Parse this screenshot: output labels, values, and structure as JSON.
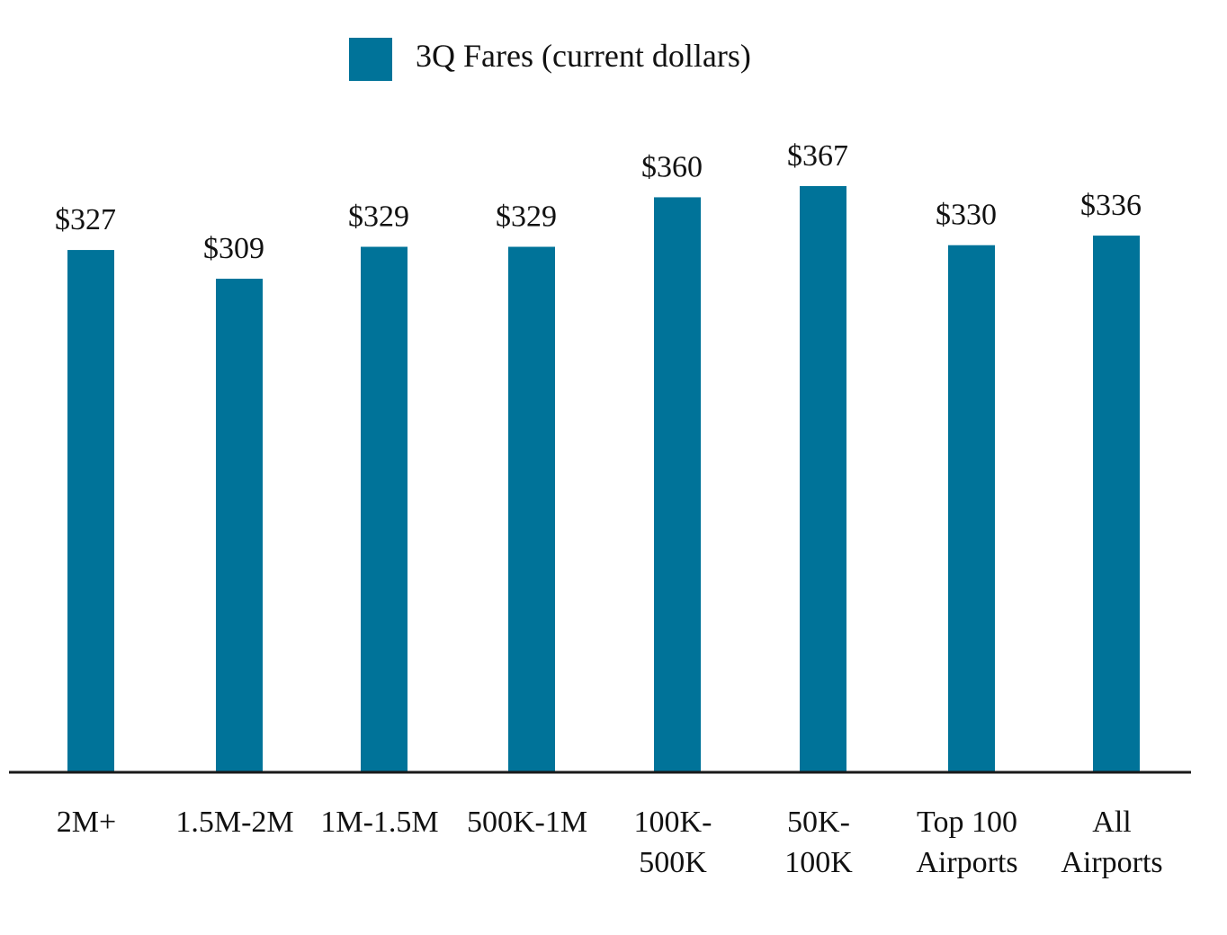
{
  "chart_data": {
    "type": "bar",
    "title": "",
    "xlabel": "",
    "ylabel": "",
    "legend": {
      "position": "top",
      "entries": [
        "3Q Fares (current dollars)"
      ]
    },
    "grid": false,
    "ylim": [
      0,
      410
    ],
    "categories": [
      [
        "2M+"
      ],
      [
        "1.5M-2M"
      ],
      [
        "1M-1.5M"
      ],
      [
        "500K-1M"
      ],
      [
        "100K-",
        "500K"
      ],
      [
        "50K-",
        "100K"
      ],
      [
        "Top 100",
        "Airports"
      ],
      [
        "All",
        "Airports"
      ]
    ],
    "series": [
      {
        "name": "3Q Fares (current dollars)",
        "values": [
          327,
          309,
          329,
          329,
          360,
          367,
          330,
          336
        ],
        "labels": [
          "$327",
          "$309",
          "$329",
          "$329",
          "$360",
          "$367",
          "$330",
          "$336"
        ],
        "color": "#007399"
      }
    ],
    "axis_color": "#1a1a1a"
  }
}
